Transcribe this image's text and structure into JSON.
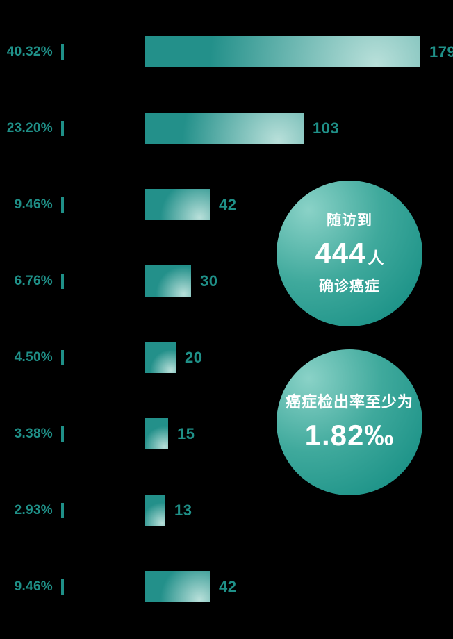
{
  "chart_data": {
    "type": "bar",
    "orientation": "horizontal",
    "title": "",
    "max_value": 179,
    "bar_color": "#23908a",
    "rows": [
      {
        "percent": "40.32%",
        "value": 179
      },
      {
        "percent": "23.20%",
        "value": 103
      },
      {
        "percent": "9.46%",
        "value": 42
      },
      {
        "percent": "6.76%",
        "value": 30
      },
      {
        "percent": "4.50%",
        "value": 20
      },
      {
        "percent": "3.38%",
        "value": 15
      },
      {
        "percent": "2.93%",
        "value": 13
      },
      {
        "percent": "9.46%",
        "value": 42
      }
    ]
  },
  "badges": {
    "followup": {
      "line1": "随访到",
      "number": "444",
      "suffix": "人",
      "line3": "确诊癌症"
    },
    "detection": {
      "line1": "癌症检出率至少为",
      "rate": "1.82‰"
    }
  },
  "colors": {
    "bar_teal": "#23908a",
    "bar_highlight": "#b9e0da",
    "label_teal": "#1f9088",
    "circle_gradient_light": "#8ad2c7",
    "circle_gradient_dark": "#0e897f",
    "circle_text": "#ffffff",
    "background": "#000000"
  }
}
